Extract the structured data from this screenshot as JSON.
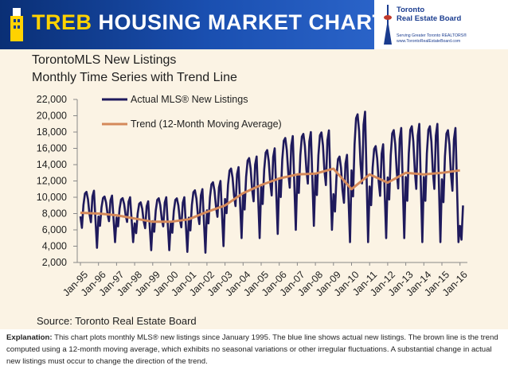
{
  "header": {
    "title_prefix": "TREB",
    "title_rest": "HOUSING MARKET CHARTS",
    "board_name_line1": "Toronto",
    "board_name_line2": "Real Estate Board",
    "board_tagline": "Serving Greater Toronto REALTORS®",
    "board_url": "www.TorontoRealEstateBoard.com"
  },
  "footer": {
    "source": "Source: Toronto Real Estate Board",
    "explanation_label": "Explanation:",
    "explanation_text": "This chart plots monthly MLS® new listings since January 1995. The blue line shows actual new listings. The brown line is the trend computed using a 12-month moving average, which exhibits no seasonal variations or other irregular fluctuations. A substantial change in actual new listings must occur to change the direction of the trend."
  },
  "colors": {
    "actual": "#1f1a5c",
    "trend": "#d4895a",
    "banner": "#0d3b8e",
    "accent": "#ffd200"
  },
  "chart_data": {
    "type": "line",
    "title_line1": "TorontoMLS New Listings",
    "title_line2": "Monthly Time Series with Trend Line",
    "ylim": [
      2000,
      22000
    ],
    "y_ticks": [
      "2,000",
      "4,000",
      "6,000",
      "8,000",
      "10,000",
      "12,000",
      "14,000",
      "16,000",
      "18,000",
      "20,000",
      "22,000"
    ],
    "x_ticks": [
      "Jan-95",
      "Jan-96",
      "Jan-97",
      "Jan-98",
      "Jan-99",
      "Jan-00",
      "Jan-01",
      "Jan-02",
      "Jan-03",
      "Jan-04",
      "Jan-05",
      "Jan-06",
      "Jan-07",
      "Jan-08",
      "Jan-09",
      "Jan-10",
      "Jan-11",
      "Jan-12",
      "Jan-13",
      "Jan-14",
      "Jan-15",
      "Jan-16"
    ],
    "legend": [
      {
        "name": "Actual MLS® New Listings",
        "key": "actual"
      },
      {
        "name": "Trend (12-Month Moving Average)",
        "key": "trend"
      }
    ],
    "actual_annual": [
      {
        "year": "1995",
        "min": 3800,
        "max": 10800
      },
      {
        "year": "1996",
        "min": 4500,
        "max": 10200
      },
      {
        "year": "1997",
        "min": 4500,
        "max": 10000
      },
      {
        "year": "1998",
        "min": 3500,
        "max": 9500
      },
      {
        "year": "1999",
        "min": 3500,
        "max": 10000
      },
      {
        "year": "2000",
        "min": 3300,
        "max": 10000
      },
      {
        "year": "2001",
        "min": 3200,
        "max": 11000
      },
      {
        "year": "2002",
        "min": 4000,
        "max": 12000
      },
      {
        "year": "2003",
        "min": 5000,
        "max": 13700
      },
      {
        "year": "2004",
        "min": 5000,
        "max": 15000
      },
      {
        "year": "2005",
        "min": 5500,
        "max": 16000
      },
      {
        "year": "2006",
        "min": 6000,
        "max": 17500
      },
      {
        "year": "2007",
        "min": 6500,
        "max": 18000
      },
      {
        "year": "2008",
        "min": 6000,
        "max": 18200
      },
      {
        "year": "2009",
        "min": 4500,
        "max": 15200
      },
      {
        "year": "2010",
        "min": 4500,
        "max": 20500
      },
      {
        "year": "2011",
        "min": 5000,
        "max": 16500
      },
      {
        "year": "2012",
        "min": 5000,
        "max": 18500
      },
      {
        "year": "2013",
        "min": 4500,
        "max": 19000
      },
      {
        "year": "2014",
        "min": 4500,
        "max": 19000
      },
      {
        "year": "2015",
        "min": 4500,
        "max": 18500
      },
      {
        "year": "2016",
        "min": 4800,
        "max": 9000
      }
    ],
    "trend": [
      {
        "x": "Jan-95",
        "y": 8100
      },
      {
        "x": "Jan-96",
        "y": 8000
      },
      {
        "x": "Jan-97",
        "y": 7800
      },
      {
        "x": "Jan-98",
        "y": 7400
      },
      {
        "x": "Jan-99",
        "y": 7000
      },
      {
        "x": "Jan-00",
        "y": 7000
      },
      {
        "x": "Jan-01",
        "y": 7300
      },
      {
        "x": "Jan-02",
        "y": 8200
      },
      {
        "x": "Jan-03",
        "y": 9000
      },
      {
        "x": "Jan-04",
        "y": 10500
      },
      {
        "x": "Jan-05",
        "y": 11500
      },
      {
        "x": "Jan-06",
        "y": 12300
      },
      {
        "x": "Jan-07",
        "y": 12800
      },
      {
        "x": "Jan-08",
        "y": 12900
      },
      {
        "x": "Jan-09",
        "y": 13500
      },
      {
        "x": "Jan-10",
        "y": 11000
      },
      {
        "x": "Jan-11",
        "y": 12800
      },
      {
        "x": "Jan-12",
        "y": 11800
      },
      {
        "x": "Jan-13",
        "y": 13000
      },
      {
        "x": "Jan-14",
        "y": 12800
      },
      {
        "x": "Jan-15",
        "y": 13000
      },
      {
        "x": "Jan-16",
        "y": 13300
      }
    ]
  }
}
